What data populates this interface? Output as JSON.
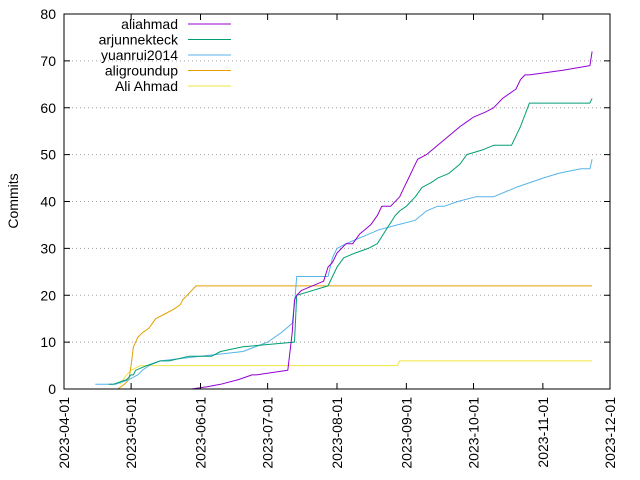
{
  "chart_data": {
    "type": "line",
    "title": "",
    "xlabel": "",
    "ylabel": "Commits",
    "ylim": [
      0,
      80
    ],
    "y_ticks": [
      "0",
      "10",
      "20",
      "30",
      "40",
      "50",
      "60",
      "70",
      "80"
    ],
    "x_range": [
      "2023-04-01",
      "2023-12-01"
    ],
    "x_ticks": [
      "2023-04-01",
      "2023-05-01",
      "2023-06-01",
      "2023-07-01",
      "2023-08-01",
      "2023-09-01",
      "2023-10-01",
      "2023-11-01",
      "2023-12-01"
    ],
    "grid": "horizontal dotted",
    "legend_position": "top-left",
    "series": [
      {
        "name": "aliahmad",
        "color": "#9400d3",
        "x": [
          "2023-05-28",
          "2023-06-04",
          "2023-06-10",
          "2023-06-18",
          "2023-06-24",
          "2023-06-26",
          "2023-07-10",
          "2023-07-12",
          "2023-07-13",
          "2023-07-14",
          "2023-07-16",
          "2023-07-26",
          "2023-07-28",
          "2023-07-30",
          "2023-08-01",
          "2023-08-05",
          "2023-08-08",
          "2023-08-11",
          "2023-08-16",
          "2023-08-19",
          "2023-08-21",
          "2023-08-25",
          "2023-08-29",
          "2023-08-31",
          "2023-09-02",
          "2023-09-04",
          "2023-09-06",
          "2023-09-10",
          "2023-09-15",
          "2023-09-20",
          "2023-09-25",
          "2023-09-28",
          "2023-10-01",
          "2023-10-06",
          "2023-10-10",
          "2023-10-14",
          "2023-10-20",
          "2023-10-22",
          "2023-10-24",
          "2023-10-26",
          "2023-11-10",
          "2023-11-22",
          "2023-11-23"
        ],
        "y": [
          0,
          0.5,
          1,
          2,
          3,
          3,
          4,
          12,
          19,
          20,
          21,
          23,
          26,
          27,
          29,
          31,
          31,
          33,
          35,
          37,
          39,
          39,
          41,
          43,
          45,
          47,
          49,
          50,
          52,
          54,
          56,
          57,
          58,
          59,
          60,
          62,
          64,
          66,
          67,
          67,
          68,
          69,
          72
        ]
      },
      {
        "name": "arjunnekteck",
        "color": "#009e73",
        "x": [
          "2023-04-21",
          "2023-04-23",
          "2023-04-29",
          "2023-05-01",
          "2023-05-02",
          "2023-05-03",
          "2023-05-08",
          "2023-05-14",
          "2023-05-18",
          "2023-05-27",
          "2023-06-06",
          "2023-06-10",
          "2023-06-20",
          "2023-07-13",
          "2023-07-14",
          "2023-07-28",
          "2023-07-30",
          "2023-08-01",
          "2023-08-04",
          "2023-08-09",
          "2023-08-15",
          "2023-08-19",
          "2023-08-23",
          "2023-08-27",
          "2023-08-29",
          "2023-09-01",
          "2023-09-03",
          "2023-09-05",
          "2023-09-08",
          "2023-09-12",
          "2023-09-15",
          "2023-09-20",
          "2023-09-25",
          "2023-09-28",
          "2023-10-05",
          "2023-10-10",
          "2023-10-18",
          "2023-10-22",
          "2023-10-26",
          "2023-11-22",
          "2023-11-23"
        ],
        "y": [
          1,
          1,
          2,
          3,
          3,
          4,
          5,
          6,
          6,
          7,
          7,
          8,
          9,
          10,
          20,
          22,
          24,
          26,
          28,
          29,
          30,
          31,
          34,
          37,
          38,
          39,
          40,
          41,
          43,
          44,
          45,
          46,
          48,
          50,
          51,
          52,
          52,
          56,
          61,
          61,
          62
        ]
      },
      {
        "name": "yuanrui2014",
        "color": "#56b4e9",
        "x": [
          "2023-04-15",
          "2023-04-24",
          "2023-04-30",
          "2023-05-04",
          "2023-05-06",
          "2023-05-09",
          "2023-05-14",
          "2023-06-01",
          "2023-06-20",
          "2023-07-01",
          "2023-07-07",
          "2023-07-12",
          "2023-07-13",
          "2023-07-14",
          "2023-07-24",
          "2023-07-28",
          "2023-07-30",
          "2023-08-01",
          "2023-08-05",
          "2023-08-10",
          "2023-08-15",
          "2023-08-20",
          "2023-08-28",
          "2023-09-05",
          "2023-09-10",
          "2023-09-15",
          "2023-09-18",
          "2023-09-24",
          "2023-10-02",
          "2023-10-10",
          "2023-10-20",
          "2023-11-01",
          "2023-11-08",
          "2023-11-18",
          "2023-11-22",
          "2023-11-23"
        ],
        "y": [
          1,
          1,
          2,
          3,
          4,
          5,
          6,
          7,
          8,
          10,
          12,
          14,
          18,
          24,
          24,
          24,
          28,
          30,
          31,
          32,
          33,
          34,
          35,
          36,
          38,
          39,
          39,
          40,
          41,
          41,
          43,
          45,
          46,
          47,
          47,
          49
        ]
      },
      {
        "name": "aligroundup",
        "color": "#e69f00",
        "x": [
          "2023-04-25",
          "2023-04-28",
          "2023-04-30",
          "2023-05-01",
          "2023-05-02",
          "2023-05-04",
          "2023-05-06",
          "2023-05-09",
          "2023-05-12",
          "2023-05-16",
          "2023-05-20",
          "2023-05-23",
          "2023-05-24",
          "2023-05-26",
          "2023-05-30",
          "2023-11-23"
        ],
        "y": [
          0,
          1,
          2,
          5,
          9,
          11,
          12,
          13,
          15,
          16,
          17,
          18,
          19,
          20,
          22,
          22
        ]
      },
      {
        "name": "Ali Ahmad",
        "color": "#f0e442",
        "x": [
          "2023-04-26",
          "2023-04-29",
          "2023-05-01",
          "2023-05-05",
          "2023-05-10",
          "2023-06-01",
          "2023-08-28",
          "2023-08-29",
          "2023-11-23"
        ],
        "y": [
          1,
          3,
          4,
          5,
          5,
          5,
          5,
          6,
          6
        ]
      }
    ]
  }
}
